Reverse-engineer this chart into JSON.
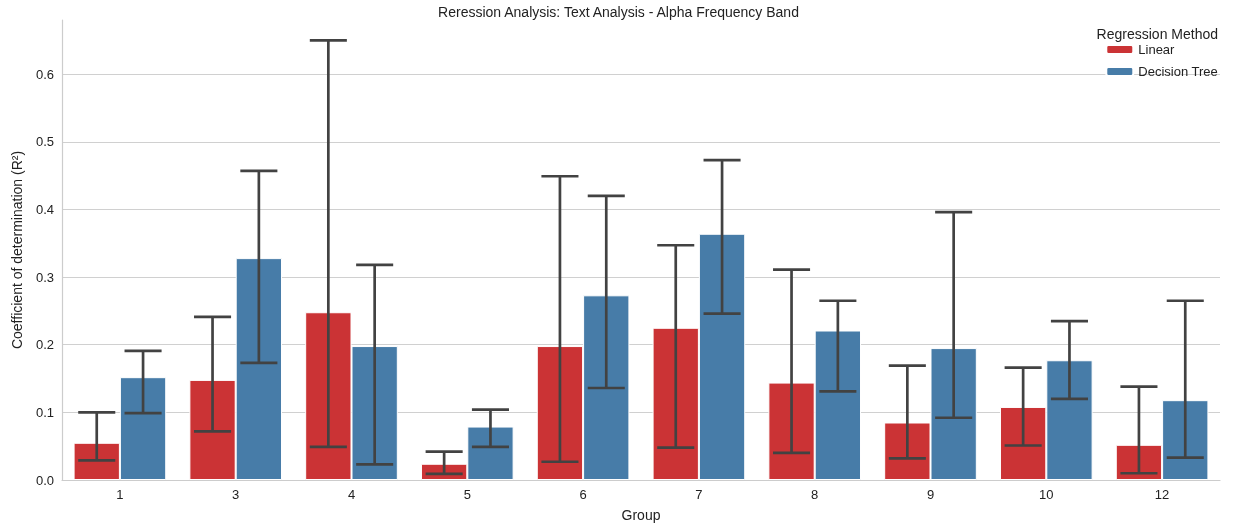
{
  "chart_data": {
    "type": "bar",
    "title": "Reression Analysis: Text Analysis - Alpha Frequency Band",
    "xlabel": "Group",
    "ylabel": "Coefficient of determination (R²)",
    "legend_title": "Regression Method",
    "categories": [
      "1",
      "3",
      "4",
      "5",
      "6",
      "7",
      "8",
      "9",
      "10",
      "12"
    ],
    "series": [
      {
        "name": "Linear",
        "color": "#cb3335",
        "values": [
          0.055,
          0.148,
          0.248,
          0.024,
          0.198,
          0.225,
          0.144,
          0.085,
          0.108,
          0.052
        ],
        "errors": [
          [
            0.029,
            0.1
          ],
          [
            0.072,
            0.241
          ],
          [
            0.049,
            0.65
          ],
          [
            0.009,
            0.042
          ],
          [
            0.027,
            0.449
          ],
          [
            0.048,
            0.347
          ],
          [
            0.04,
            0.311
          ],
          [
            0.032,
            0.169
          ],
          [
            0.051,
            0.166
          ],
          [
            0.01,
            0.138
          ]
        ]
      },
      {
        "name": "Decision Tree",
        "color": "#477ca8",
        "values": [
          0.152,
          0.328,
          0.198,
          0.079,
          0.273,
          0.364,
          0.221,
          0.195,
          0.177,
          0.118
        ],
        "errors": [
          [
            0.099,
            0.191
          ],
          [
            0.173,
            0.457
          ],
          [
            0.023,
            0.318
          ],
          [
            0.049,
            0.104
          ],
          [
            0.136,
            0.42
          ],
          [
            0.246,
            0.473
          ],
          [
            0.131,
            0.265
          ],
          [
            0.092,
            0.396
          ],
          [
            0.12,
            0.235
          ],
          [
            0.033,
            0.265
          ]
        ]
      }
    ],
    "ylim": [
      0,
      0.68
    ],
    "yticks": [
      {
        "value": 0,
        "label": "0.0"
      },
      0.1,
      0.2,
      0.3,
      0.4,
      0.5,
      0.6
    ],
    "grid": "y",
    "legend": "top right"
  }
}
